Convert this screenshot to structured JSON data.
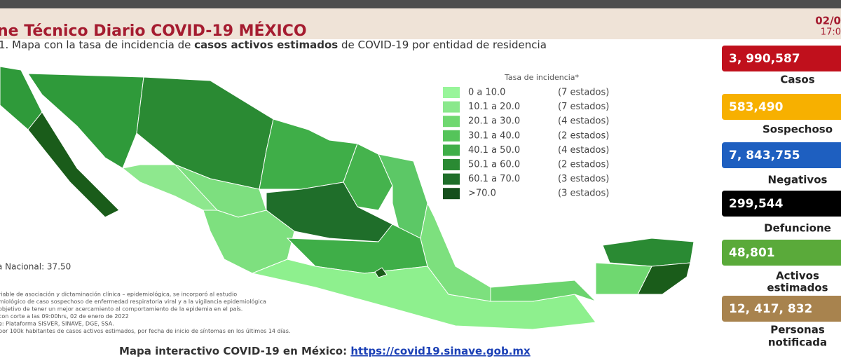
{
  "header": {
    "title": "ne Técnico Diario COVID-19 MÉXICO",
    "date": "02/0",
    "time": "17:0",
    "subtitle": [
      "1. Mapa con la tasa de incidencia de ",
      "casos activos estimados",
      " de COVID-19 por entidad de residencia"
    ]
  },
  "legend": {
    "title": "Tasa de incidencia*",
    "items": [
      {
        "range": "0   a 10.0",
        "count": "(7 estados)"
      },
      {
        "range": "10.1 a 20.0",
        "count": "(7 estados)"
      },
      {
        "range": "20.1 a 30.0",
        "count": "(4 estados)"
      },
      {
        "range": "30.1 a 40.0",
        "count": "(2 estados)"
      },
      {
        "range": "40.1 a 50.0",
        "count": "(4 estados)"
      },
      {
        "range": "50.1 a 60.0",
        "count": "(2 estados)"
      },
      {
        "range": "60.1 a 70.0",
        "count": "(3 estados)"
      },
      {
        "range": ">70.0",
        "count": "(3 estados)"
      }
    ]
  },
  "national_rate": "a Nacional: 37.50",
  "notes": [
    "riable de asociación y dictaminación clínica – epidemiológica, se incorporó al estudio",
    "miológico de caso sospechoso de enfermedad respiratoria viral y a la vigilancia epidemiológica",
    "objetivo de tener un mejor acercamiento al comportamiento de la epidemia en el país.",
    "con corte a las 09:00hrs, 02 de enero de 2022",
    "e: Plataforma SISVER, SINAVE, DGE, SSA.",
    "por 100k habitantes de casos activos estimados, por fecha de inicio de síntomas en los últimos 14 días."
  ],
  "footer": {
    "text": "Mapa interactivo COVID-19 en México: ",
    "link": "https://covid19.sinave.gob.mx"
  },
  "stats": [
    {
      "value": "3, 990,587",
      "label": [
        "Casos"
      ]
    },
    {
      "value": "583,490",
      "label": [
        "Sospechoso"
      ]
    },
    {
      "value": "7, 843,755",
      "label": [
        "Negativos"
      ]
    },
    {
      "value": "299,544",
      "label": [
        "Defuncione"
      ]
    },
    {
      "value": "48,801",
      "label": [
        "Activos",
        "estimados"
      ]
    },
    {
      "value": "12, 417, 832",
      "label": [
        "Personas",
        "notificada"
      ]
    }
  ]
}
